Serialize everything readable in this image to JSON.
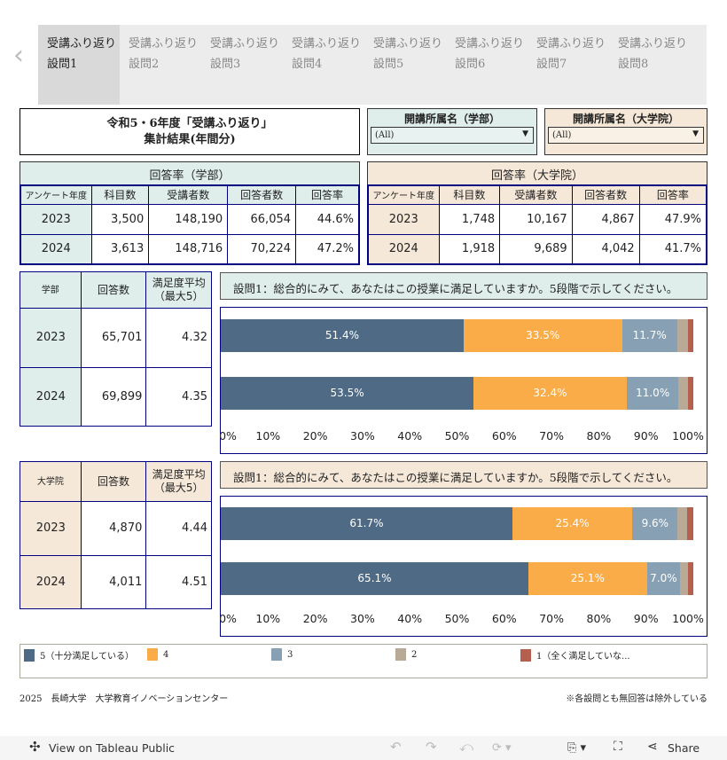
{
  "tabs": [
    "受講ふり返り設問1",
    "受講ふり返り設問2",
    "受講ふり返り設問3",
    "受講ふり返り設問4",
    "受講ふり返り設問5",
    "受講ふり返り設問6",
    "受講ふり返り設問7",
    "受講ふり返り設問8"
  ],
  "active_tab": 0,
  "title_line1": "令和5・6年度「受講ふり返り」",
  "title_line2": "集計結果(年間分)",
  "filters": [
    {
      "label": "開講所属名（学部）",
      "value": "(All)"
    },
    {
      "label": "開講所属名（大学院）",
      "value": "(All)"
    }
  ],
  "rate_tables": [
    {
      "title": "回答率（学部）",
      "headers": [
        "アンケート年度",
        "科目数",
        "受講者数",
        "回答者数",
        "回答率"
      ],
      "rows": [
        [
          "2023",
          "3,500",
          "148,190",
          "66,054",
          "44.6%"
        ],
        [
          "2024",
          "3,613",
          "148,716",
          "70,224",
          "47.2%"
        ]
      ]
    },
    {
      "title": "回答率（大学院）",
      "headers": [
        "アンケート年度",
        "科目数",
        "受講者数",
        "回答者数",
        "回答率"
      ],
      "rows": [
        [
          "2023",
          "1,748",
          "10,167",
          "4,867",
          "47.9%"
        ],
        [
          "2024",
          "1,918",
          "9,689",
          "4,042",
          "41.7%"
        ]
      ]
    }
  ],
  "sections": [
    {
      "headers": [
        "学部",
        "回答数",
        "満足度平均\n（最大5）"
      ],
      "rows": [
        [
          "2023",
          "65,701",
          "4.32"
        ],
        [
          "2024",
          "69,899",
          "4.35"
        ]
      ],
      "question": "設問1：総合的にみて、あなたはこの授業に満足していますか。5段階で示してください。"
    },
    {
      "headers": [
        "大学院",
        "回答数",
        "満足度平均\n（最大5）"
      ],
      "rows": [
        [
          "2023",
          "4,870",
          "4.44"
        ],
        [
          "2024",
          "4,011",
          "4.51"
        ]
      ],
      "question": "設問1：総合的にみて、あなたはこの授業に満足していますか。5段階で示してください。"
    }
  ],
  "chart_data": [
    {
      "type": "bar",
      "orientation": "horizontal",
      "stacked": true,
      "categories": [
        "2023",
        "2024"
      ],
      "xlim": [
        0,
        100
      ],
      "ticks": [
        "0%",
        "10%",
        "20%",
        "30%",
        "40%",
        "50%",
        "60%",
        "70%",
        "80%",
        "90%",
        "100%"
      ],
      "series": [
        {
          "name": "5（十分満足している）",
          "values": [
            51.4,
            53.5
          ]
        },
        {
          "name": "4",
          "values": [
            33.5,
            32.4
          ]
        },
        {
          "name": "3",
          "values": [
            11.7,
            11.0
          ]
        },
        {
          "name": "2",
          "values": [
            2.2,
            2.0
          ]
        },
        {
          "name": "1（全く満足していな...",
          "values": [
            1.2,
            1.1
          ]
        }
      ]
    },
    {
      "type": "bar",
      "orientation": "horizontal",
      "stacked": true,
      "categories": [
        "2023",
        "2024"
      ],
      "xlim": [
        0,
        100
      ],
      "ticks": [
        "0%",
        "10%",
        "20%",
        "30%",
        "40%",
        "50%",
        "60%",
        "70%",
        "80%",
        "90%",
        "100%"
      ],
      "series": [
        {
          "name": "5（十分満足している）",
          "values": [
            61.7,
            65.1
          ]
        },
        {
          "name": "4",
          "values": [
            25.4,
            25.1
          ]
        },
        {
          "name": "3",
          "values": [
            9.6,
            7.0
          ]
        },
        {
          "name": "2",
          "values": [
            2.0,
            1.6
          ]
        },
        {
          "name": "1（全く満足していな...",
          "values": [
            1.3,
            1.2
          ]
        }
      ]
    }
  ],
  "legend": [
    "5（十分満足している）",
    "4",
    "3",
    "2",
    "1（全く満足していな..."
  ],
  "colors": [
    "#4e6a85",
    "#f9ac48",
    "#87a0b3",
    "#b9aa97",
    "#b5604f"
  ],
  "footer_left": "2025　長崎大学　大学教育イノベーションセンター",
  "footer_right": "※各設問とも無回答は除外している",
  "toolbar": {
    "view_label": "View on Tableau Public",
    "share_label": "Share"
  }
}
